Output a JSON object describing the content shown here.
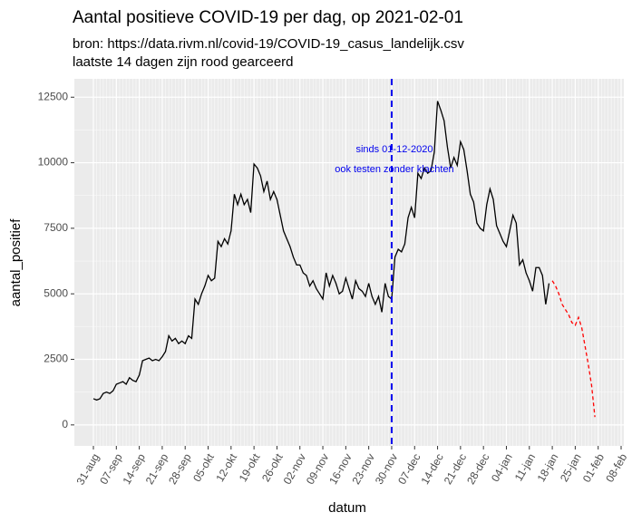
{
  "chart_data": {
    "type": "line",
    "title": "Aantal positieve COVID-19 per dag, op 2021-02-01",
    "subtitle": [
      "bron: https://data.rivm.nl/covid-19/COVID-19_casus_landelijk.csv",
      "laatste 14 dagen zijn rood gearceerd"
    ],
    "x_label": "datum",
    "y_label": "aantal_positief",
    "x": [
      "31-aug",
      "01-sep",
      "02-sep",
      "03-sep",
      "04-sep",
      "05-sep",
      "06-sep",
      "07-sep",
      "08-sep",
      "09-sep",
      "10-sep",
      "11-sep",
      "12-sep",
      "13-sep",
      "14-sep",
      "15-sep",
      "16-sep",
      "17-sep",
      "18-sep",
      "19-sep",
      "20-sep",
      "21-sep",
      "22-sep",
      "23-sep",
      "24-sep",
      "25-sep",
      "26-sep",
      "27-sep",
      "28-sep",
      "29-sep",
      "30-sep",
      "01-okt",
      "02-okt",
      "03-okt",
      "04-okt",
      "05-okt",
      "06-okt",
      "07-okt",
      "08-okt",
      "09-okt",
      "10-okt",
      "11-okt",
      "12-okt",
      "13-okt",
      "14-okt",
      "15-okt",
      "16-okt",
      "17-okt",
      "18-okt",
      "19-okt",
      "20-okt",
      "21-okt",
      "22-okt",
      "23-okt",
      "24-okt",
      "25-okt",
      "26-okt",
      "27-okt",
      "28-okt",
      "29-okt",
      "30-okt",
      "31-okt",
      "01-nov",
      "02-nov",
      "03-nov",
      "04-nov",
      "05-nov",
      "06-nov",
      "07-nov",
      "08-nov",
      "09-nov",
      "10-nov",
      "11-nov",
      "12-nov",
      "13-nov",
      "14-nov",
      "15-nov",
      "16-nov",
      "17-nov",
      "18-nov",
      "19-nov",
      "20-nov",
      "21-nov",
      "22-nov",
      "23-nov",
      "24-nov",
      "25-nov",
      "26-nov",
      "27-nov",
      "28-nov",
      "29-nov",
      "30-nov",
      "01-dec",
      "02-dec",
      "03-dec",
      "04-dec",
      "05-dec",
      "06-dec",
      "07-dec",
      "08-dec",
      "09-dec",
      "10-dec",
      "11-dec",
      "12-dec",
      "13-dec",
      "14-dec",
      "15-dec",
      "16-dec",
      "17-dec",
      "18-dec",
      "19-dec",
      "20-dec",
      "21-dec",
      "22-dec",
      "23-dec",
      "24-dec",
      "25-dec",
      "26-dec",
      "27-dec",
      "28-dec",
      "29-dec",
      "30-dec",
      "31-dec",
      "01-jan",
      "02-jan",
      "03-jan",
      "04-jan",
      "05-jan",
      "06-jan",
      "07-jan",
      "08-jan",
      "09-jan",
      "10-jan",
      "11-jan",
      "12-jan",
      "13-jan",
      "14-jan",
      "15-jan",
      "16-jan",
      "17-jan",
      "18-jan",
      "19-jan",
      "20-jan",
      "21-jan",
      "22-jan",
      "23-jan",
      "24-jan",
      "25-jan",
      "26-jan",
      "27-jan",
      "28-jan",
      "29-jan",
      "30-jan",
      "31-jan",
      "01-feb",
      "02-feb",
      "03-feb",
      "04-feb",
      "05-feb",
      "06-feb",
      "07-feb",
      "08-feb"
    ],
    "series": [
      {
        "color": "#000000",
        "dash": false,
        "values": [
          1000,
          950,
          1000,
          1200,
          1250,
          1200,
          1300,
          1550,
          1600,
          1650,
          1550,
          1800,
          1700,
          1650,
          1900,
          2450,
          2500,
          2550,
          2450,
          2500,
          2450,
          2600,
          2800,
          3400,
          3200,
          3300,
          3100,
          3200,
          3100,
          3400,
          3300,
          4800,
          4600,
          5000,
          5300,
          5700,
          5500,
          5600,
          7000,
          6800,
          7100,
          6900,
          7400,
          8800,
          8400,
          8800,
          8400,
          8600,
          8100,
          9950,
          9800,
          9500,
          8900,
          9300,
          8600,
          8900,
          8600,
          8000,
          7400,
          7100,
          6800,
          6400,
          6100,
          6100,
          5800,
          5700,
          5300,
          5500,
          5200,
          5000,
          4800,
          5800,
          5300,
          5700,
          5400,
          5000,
          5100,
          5600,
          5200,
          4800,
          5500,
          5200,
          5100,
          4900,
          5400,
          4900,
          4600,
          4900,
          4300,
          5400,
          4900,
          4800,
          6400,
          6700,
          6600,
          6900,
          7900,
          8300,
          7900,
          9600,
          9400,
          9800,
          9600,
          9700,
          10400,
          12350,
          12000,
          11600,
          10600,
          9800,
          10200,
          9900,
          10800,
          10500,
          9700,
          8800,
          8500,
          7700,
          7500,
          7400,
          8400,
          9000,
          8600,
          7600,
          7300,
          7000,
          6800,
          7400,
          8000,
          7700,
          6100,
          6300,
          5800,
          5500,
          5100,
          6000,
          6000,
          5700,
          4600,
          5400,
          null,
          null,
          null,
          null,
          null,
          null,
          null,
          null,
          null,
          null,
          null,
          null,
          null,
          null,
          null,
          null,
          null,
          null,
          null,
          null,
          null,
          null
        ]
      },
      {
        "color": "#ff0000",
        "dash": true,
        "values": [
          null,
          null,
          null,
          null,
          null,
          null,
          null,
          null,
          null,
          null,
          null,
          null,
          null,
          null,
          null,
          null,
          null,
          null,
          null,
          null,
          null,
          null,
          null,
          null,
          null,
          null,
          null,
          null,
          null,
          null,
          null,
          null,
          null,
          null,
          null,
          null,
          null,
          null,
          null,
          null,
          null,
          null,
          null,
          null,
          null,
          null,
          null,
          null,
          null,
          null,
          null,
          null,
          null,
          null,
          null,
          null,
          null,
          null,
          null,
          null,
          null,
          null,
          null,
          null,
          null,
          null,
          null,
          null,
          null,
          null,
          null,
          null,
          null,
          null,
          null,
          null,
          null,
          null,
          null,
          null,
          null,
          null,
          null,
          null,
          null,
          null,
          null,
          null,
          null,
          null,
          null,
          null,
          null,
          null,
          null,
          null,
          null,
          null,
          null,
          null,
          null,
          null,
          null,
          null,
          null,
          null,
          null,
          null,
          null,
          null,
          null,
          null,
          null,
          null,
          null,
          null,
          null,
          null,
          null,
          null,
          null,
          null,
          null,
          null,
          null,
          null,
          null,
          null,
          null,
          null,
          null,
          null,
          null,
          null,
          null,
          null,
          null,
          null,
          null,
          null,
          5500,
          5300,
          5000,
          4600,
          4400,
          4200,
          3900,
          3800,
          4100,
          3700,
          3000,
          2300,
          1500,
          300,
          null,
          null,
          null,
          null,
          null,
          null,
          null,
          null
        ]
      }
    ],
    "vline": {
      "x": "30-nov",
      "color": "#0000ee"
    },
    "annotation": {
      "lines": [
        "sinds 01-12-2020",
        "ook testen zonder klachten"
      ],
      "color": "#0000ee"
    },
    "ylim": [
      -800,
      13200
    ],
    "yticks": [
      0,
      2500,
      5000,
      7500,
      10000,
      12500
    ],
    "xticks": [
      "31-aug",
      "07-sep",
      "14-sep",
      "21-sep",
      "28-sep",
      "05-okt",
      "12-okt",
      "19-okt",
      "26-okt",
      "02-nov",
      "09-nov",
      "16-nov",
      "23-nov",
      "30-nov",
      "07-dec",
      "14-dec",
      "21-dec",
      "28-dec",
      "04-jan",
      "11-jan",
      "18-jan",
      "25-jan",
      "01-feb",
      "08-feb"
    ],
    "grid": true
  }
}
